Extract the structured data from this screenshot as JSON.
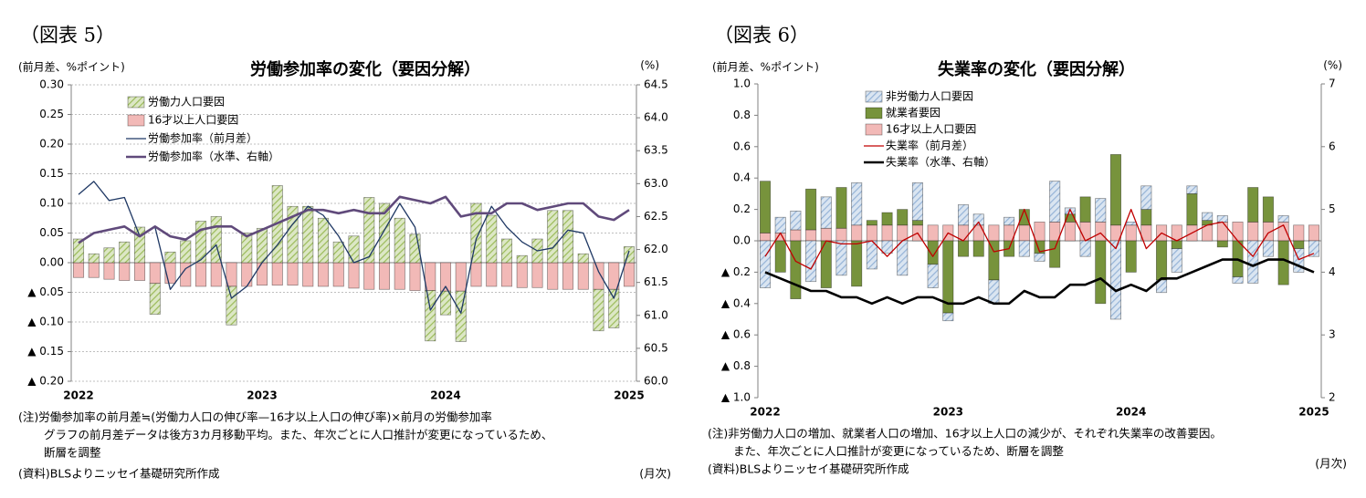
{
  "chart_data": [
    {
      "type": "bar",
      "figure_label": "（図表 5）",
      "title": "労働参加率の変化（要因分解）",
      "y_label": "(前月差、%ポイント)",
      "y2_label": "(%)",
      "x_label": "(月次)",
      "notes": [
        "(注)労働参加率の前月差≒(労働力人口の伸び率—16才以上人口の伸び率)×前月の労働参加率",
        "グラフの前月差データは後方3カ月移動平均。また、年次ごとに人口推計が変更になっているため、",
        "断層を調整"
      ],
      "source": "(資料)BLSよりニッセイ基礎研究所作成",
      "categories": [
        "2022",
        null,
        null,
        null,
        null,
        null,
        null,
        null,
        null,
        null,
        null,
        null,
        "2023",
        null,
        null,
        null,
        null,
        null,
        null,
        null,
        null,
        null,
        null,
        null,
        "2024",
        null,
        null,
        null,
        null,
        null,
        null,
        null,
        null,
        null,
        null,
        null,
        "2025"
      ],
      "ylim": [
        -0.2,
        0.3
      ],
      "yticks": [
        {
          "value": 0.3,
          "label": "0.30"
        },
        {
          "value": 0.25,
          "label": "0.25"
        },
        {
          "value": 0.2,
          "label": "0.20"
        },
        {
          "value": 0.15,
          "label": "0.15"
        },
        {
          "value": 0.1,
          "label": "0.10"
        },
        {
          "value": 0.05,
          "label": "0.05"
        },
        {
          "value": 0,
          "label": "0.00"
        },
        {
          "value": -0.05,
          "label": "▲ 0.05"
        },
        {
          "value": -0.1,
          "label": "▲ 0.10"
        },
        {
          "value": -0.15,
          "label": "▲ 0.15"
        },
        {
          "value": -0.2,
          "label": "▲ 0.20"
        }
      ],
      "y2lim": [
        60,
        64.5
      ],
      "y2ticks": [
        {
          "value": 64.5,
          "label": "64.5"
        },
        {
          "value": 64,
          "label": "64.0"
        },
        63.5,
        {
          "value": 63,
          "label": "63.0"
        },
        62.5,
        {
          "value": 62,
          "label": "62.0"
        },
        61.5,
        {
          "value": 61,
          "label": "61.0"
        },
        60.5,
        {
          "value": 60,
          "label": "60.0"
        }
      ],
      "grid": true,
      "series": [
        {
          "name": "労働力人口要因",
          "type": "bar",
          "pattern": "hatch",
          "color": "#9bbb59",
          "values": [
            0.04,
            0.015,
            0.025,
            0.035,
            0.06,
            -0.052,
            0.018,
            0.037,
            0.07,
            0.078,
            -0.065,
            0.05,
            0.058,
            0.13,
            0.095,
            0.095,
            0.075,
            0.035,
            0.045,
            0.11,
            0.1,
            0.075,
            0.048,
            -0.085,
            -0.04,
            -0.085,
            0.1,
            0.08,
            0.04,
            0.012,
            0.04,
            0.088,
            0.088,
            0.015,
            -0.07,
            -0.065,
            0.027
          ]
        },
        {
          "name": "16才以上人口要因",
          "type": "bar",
          "color": "#f2b9b7",
          "values": [
            -0.025,
            -0.025,
            -0.028,
            -0.03,
            -0.03,
            -0.035,
            -0.035,
            -0.04,
            -0.04,
            -0.04,
            -0.04,
            -0.04,
            -0.038,
            -0.038,
            -0.038,
            -0.04,
            -0.04,
            -0.04,
            -0.043,
            -0.045,
            -0.045,
            -0.045,
            -0.047,
            -0.047,
            -0.048,
            -0.048,
            -0.04,
            -0.04,
            -0.04,
            -0.042,
            -0.042,
            -0.045,
            -0.045,
            -0.045,
            -0.045,
            -0.045,
            -0.04
          ]
        },
        {
          "name": "労働参加率（前月差）",
          "type": "line",
          "color": "#1f3864",
          "values": [
            0.115,
            0.137,
            0.105,
            0.11,
            0.045,
            0.06,
            -0.045,
            -0.01,
            0.005,
            0.03,
            -0.06,
            -0.04,
            0.0,
            0.03,
            0.065,
            0.095,
            0.08,
            0.045,
            0.0,
            0.01,
            0.055,
            0.1,
            0.06,
            -0.08,
            -0.04,
            -0.085,
            0.04,
            0.095,
            0.06,
            0.035,
            0.02,
            0.025,
            0.055,
            0.05,
            -0.015,
            -0.06,
            0.02
          ]
        },
        {
          "name": "労働参加率（水準、右軸）",
          "type": "line",
          "axis": "y2",
          "color": "#604a7b",
          "values": [
            62.1,
            62.25,
            62.3,
            62.35,
            62.2,
            62.35,
            62.2,
            62.15,
            62.3,
            62.35,
            62.35,
            62.2,
            62.3,
            62.4,
            62.5,
            62.6,
            62.6,
            62.55,
            62.6,
            62.55,
            62.55,
            62.8,
            62.75,
            62.7,
            62.8,
            62.5,
            62.55,
            62.55,
            62.7,
            62.7,
            62.6,
            62.65,
            62.7,
            62.7,
            62.5,
            62.45,
            62.6
          ]
        }
      ]
    },
    {
      "type": "bar",
      "figure_label": "（図表 6）",
      "title": "失業率の変化（要因分解）",
      "y_label": "(前月差、%ポイント)",
      "y2_label": "(%)",
      "x_label": "(月次)",
      "notes": [
        "(注)非労働力人口の増加、就業者人口の増加、16才以上人口の減少が、それぞれ失業率の改善要因。",
        "また、年次ごとに人口推計が変更になっているため、断層を調整"
      ],
      "source": "(資料)BLSよりニッセイ基礎研究所作成",
      "categories": [
        "2022",
        null,
        null,
        null,
        null,
        null,
        null,
        null,
        null,
        null,
        null,
        null,
        "2023",
        null,
        null,
        null,
        null,
        null,
        null,
        null,
        null,
        null,
        null,
        null,
        "2024",
        null,
        null,
        null,
        null,
        null,
        null,
        null,
        null,
        null,
        null,
        null,
        "2025"
      ],
      "ylim": [
        -1,
        1
      ],
      "yticks": [
        {
          "value": 1,
          "label": "1.0"
        },
        {
          "value": 0.8,
          "label": "0.8"
        },
        {
          "value": 0.6,
          "label": "0.6"
        },
        {
          "value": 0.4,
          "label": "0.4"
        },
        {
          "value": 0.2,
          "label": "0.2"
        },
        {
          "value": 0,
          "label": "0.0"
        },
        {
          "value": -0.2,
          "label": "▲ 0.2"
        },
        {
          "value": -0.4,
          "label": "▲ 0.4"
        },
        {
          "value": -0.6,
          "label": "▲ 0.6"
        },
        {
          "value": -0.8,
          "label": "▲ 0.8"
        },
        {
          "value": -1,
          "label": "▲ 1.0"
        }
      ],
      "y2lim": [
        2,
        7
      ],
      "y2ticks": [
        7,
        6,
        5,
        4,
        3,
        2
      ],
      "grid": false,
      "series": [
        {
          "name": "非労働力人口要因",
          "type": "bar",
          "pattern": "hatch",
          "color": "#95b3d7",
          "values": [
            -0.3,
            0.1,
            0.12,
            -0.26,
            0.2,
            -0.22,
            0.27,
            -0.18,
            -0.08,
            -0.22,
            0.24,
            -0.15,
            -0.05,
            0.13,
            0.07,
            -0.15,
            0.05,
            -0.1,
            -0.05,
            0.26,
            0.04,
            -0.1,
            0.15,
            -0.5,
            0.02,
            0.15,
            -0.08,
            -0.15,
            0.05,
            0.05,
            0.04,
            -0.04,
            -0.27,
            -0.1,
            0.04,
            -0.15,
            -0.1
          ]
        },
        {
          "name": "就業者要因",
          "type": "bar",
          "color": "#77933c",
          "values": [
            0.33,
            -0.2,
            -0.37,
            0.26,
            -0.3,
            0.26,
            -0.29,
            0.03,
            0.08,
            0.1,
            0.03,
            -0.15,
            -0.46,
            -0.1,
            -0.1,
            -0.25,
            -0.1,
            0.1,
            -0.08,
            -0.17,
            0.05,
            0.16,
            -0.4,
            0.45,
            -0.2,
            0.1,
            -0.25,
            -0.05,
            0.2,
            0.03,
            -0.04,
            -0.23,
            0.22,
            0.16,
            -0.28,
            -0.05,
            0.0
          ]
        },
        {
          "name": "16才以上人口要因",
          "type": "bar",
          "color": "#f2b9b7",
          "values": [
            0.05,
            0.05,
            0.07,
            0.07,
            0.08,
            0.08,
            0.1,
            0.1,
            0.1,
            0.1,
            0.1,
            0.1,
            0.1,
            0.1,
            0.1,
            0.1,
            0.1,
            0.1,
            0.12,
            0.12,
            0.12,
            0.12,
            0.12,
            0.1,
            0.1,
            0.1,
            0.1,
            0.1,
            0.1,
            0.1,
            0.12,
            0.12,
            0.12,
            0.12,
            0.12,
            0.1,
            0.1
          ]
        },
        {
          "name": "失業率（前月差）",
          "type": "line",
          "color": "#c00000",
          "values": [
            -0.1,
            0.05,
            -0.13,
            -0.18,
            0.0,
            -0.02,
            -0.02,
            0.0,
            -0.1,
            0.0,
            0.05,
            -0.1,
            0.05,
            0.0,
            0.12,
            -0.07,
            -0.05,
            0.2,
            -0.07,
            -0.05,
            0.2,
            0.0,
            0.05,
            -0.05,
            0.2,
            -0.05,
            0.05,
            0.0,
            0.05,
            0.1,
            0.12,
            0.0,
            -0.1,
            0.05,
            0.1,
            -0.12,
            -0.08
          ]
        },
        {
          "name": "失業率（水準、右軸）",
          "type": "line",
          "axis": "y2",
          "color": "#000000",
          "values": [
            4.0,
            3.9,
            3.8,
            3.7,
            3.7,
            3.6,
            3.6,
            3.5,
            3.6,
            3.5,
            3.6,
            3.6,
            3.5,
            3.5,
            3.6,
            3.5,
            3.5,
            3.7,
            3.6,
            3.6,
            3.8,
            3.8,
            3.9,
            3.7,
            3.8,
            3.7,
            3.9,
            3.9,
            4.0,
            4.1,
            4.2,
            4.2,
            4.1,
            4.2,
            4.2,
            4.1,
            4.0
          ]
        }
      ]
    }
  ]
}
